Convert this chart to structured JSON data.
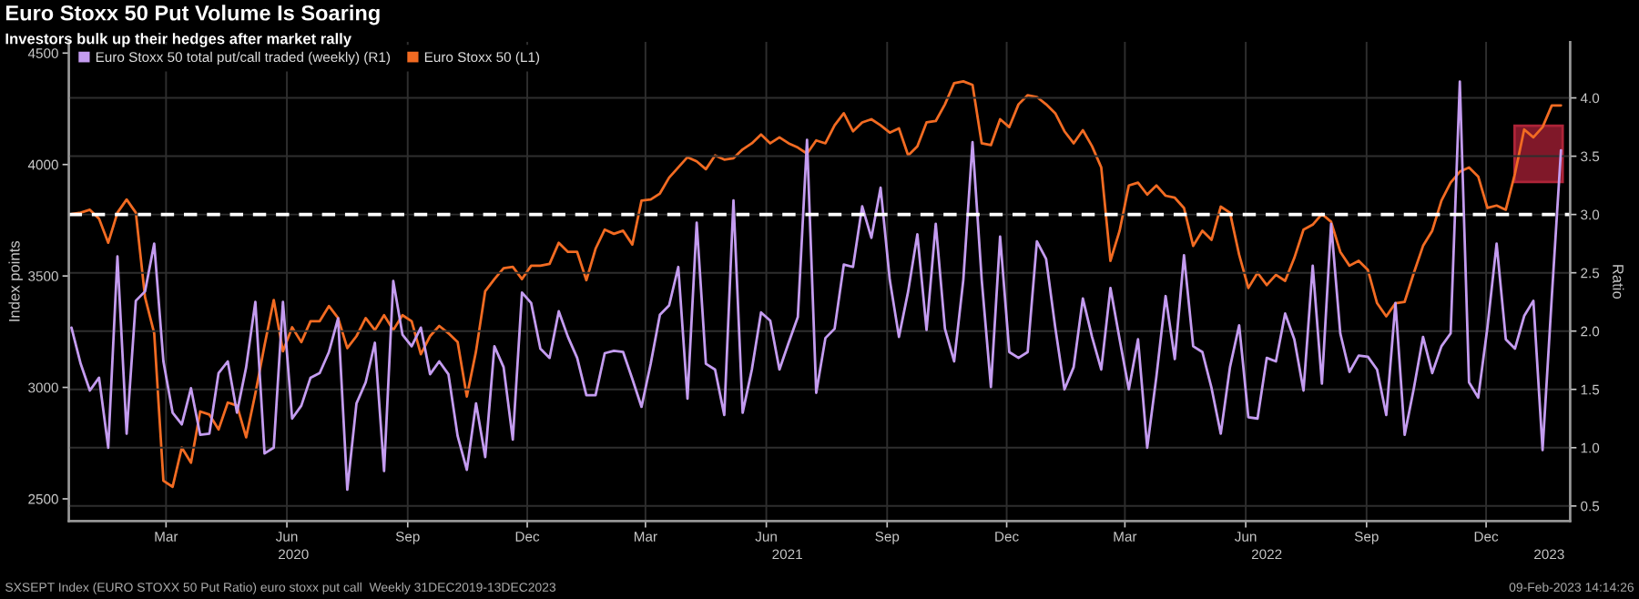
{
  "chart_data": {
    "type": "line",
    "title": "Euro Stoxx 50 Put Volume Is Soaring",
    "subtitle": "Investors bulk up their hedges after market rally",
    "ylabel": "Index points",
    "y2label": "Ratio",
    "annotations": [
      "SXSEPT Index (EURO STOXX 50 Put Ratio) euro stoxx put call  Weekly 31DEC2019-13DEC2023",
      "09-Feb-2023 14:14:26"
    ],
    "x": [
      "2020-01-03",
      "2020-01-10",
      "2020-01-17",
      "2020-01-24",
      "2020-01-31",
      "2020-02-07",
      "2020-02-14",
      "2020-02-21",
      "2020-02-28",
      "2020-03-06",
      "2020-03-13",
      "2020-03-20",
      "2020-03-27",
      "2020-04-03",
      "2020-04-10",
      "2020-04-17",
      "2020-04-24",
      "2020-05-01",
      "2020-05-08",
      "2020-05-15",
      "2020-05-22",
      "2020-05-29",
      "2020-06-05",
      "2020-06-12",
      "2020-06-19",
      "2020-06-26",
      "2020-07-03",
      "2020-07-10",
      "2020-07-17",
      "2020-07-24",
      "2020-07-31",
      "2020-08-07",
      "2020-08-14",
      "2020-08-21",
      "2020-08-28",
      "2020-09-04",
      "2020-09-11",
      "2020-09-18",
      "2020-09-25",
      "2020-10-02",
      "2020-10-09",
      "2020-10-16",
      "2020-10-23",
      "2020-10-30",
      "2020-11-06",
      "2020-11-13",
      "2020-11-20",
      "2020-11-27",
      "2020-12-04",
      "2020-12-11",
      "2020-12-18",
      "2020-12-25",
      "2021-01-01",
      "2021-01-08",
      "2021-01-15",
      "2021-01-22",
      "2021-01-29",
      "2021-02-05",
      "2021-02-12",
      "2021-02-19",
      "2021-02-26",
      "2021-03-05",
      "2021-03-12",
      "2021-03-19",
      "2021-03-26",
      "2021-04-02",
      "2021-04-09",
      "2021-04-16",
      "2021-04-23",
      "2021-04-30",
      "2021-05-07",
      "2021-05-14",
      "2021-05-21",
      "2021-05-28",
      "2021-06-04",
      "2021-06-11",
      "2021-06-18",
      "2021-06-25",
      "2021-07-02",
      "2021-07-09",
      "2021-07-16",
      "2021-07-23",
      "2021-07-30",
      "2021-08-06",
      "2021-08-13",
      "2021-08-20",
      "2021-08-27",
      "2021-09-03",
      "2021-09-10",
      "2021-09-17",
      "2021-09-24",
      "2021-10-01",
      "2021-10-08",
      "2021-10-15",
      "2021-10-22",
      "2021-10-29",
      "2021-11-05",
      "2021-11-12",
      "2021-11-19",
      "2021-11-26",
      "2021-12-03",
      "2021-12-10",
      "2021-12-17",
      "2021-12-24",
      "2021-12-31",
      "2022-01-07",
      "2022-01-14",
      "2022-01-21",
      "2022-01-28",
      "2022-02-04",
      "2022-02-11",
      "2022-02-18",
      "2022-02-25",
      "2022-03-04",
      "2022-03-11",
      "2022-03-18",
      "2022-03-25",
      "2022-04-01",
      "2022-04-08",
      "2022-04-15",
      "2022-04-22",
      "2022-04-29",
      "2022-05-06",
      "2022-05-13",
      "2022-05-20",
      "2022-05-27",
      "2022-06-03",
      "2022-06-10",
      "2022-06-17",
      "2022-06-24",
      "2022-07-01",
      "2022-07-08",
      "2022-07-15",
      "2022-07-22",
      "2022-07-29",
      "2022-08-05",
      "2022-08-12",
      "2022-08-19",
      "2022-08-26",
      "2022-09-02",
      "2022-09-09",
      "2022-09-16",
      "2022-09-23",
      "2022-09-30",
      "2022-10-07",
      "2022-10-14",
      "2022-10-21",
      "2022-10-28",
      "2022-11-04",
      "2022-11-11",
      "2022-11-18",
      "2022-11-25",
      "2022-12-02",
      "2022-12-09",
      "2022-12-16",
      "2022-12-23",
      "2022-12-30",
      "2023-01-06",
      "2023-01-13",
      "2023-01-20",
      "2023-01-27",
      "2023-02-03",
      "2023-02-10"
    ],
    "series": [
      {
        "name": "Euro Stoxx 50 (L1)",
        "color": "#f26b22",
        "values": [
          3778,
          3784,
          3797,
          3757,
          3649,
          3784,
          3843,
          3784,
          3405,
          3243,
          2581,
          2554,
          2730,
          2662,
          2892,
          2878,
          2811,
          2932,
          2919,
          2776,
          2973,
          3189,
          3392,
          3162,
          3270,
          3203,
          3297,
          3297,
          3365,
          3311,
          3176,
          3230,
          3311,
          3257,
          3324,
          3257,
          3324,
          3297,
          3149,
          3230,
          3276,
          3243,
          3203,
          2959,
          3162,
          3432,
          3486,
          3535,
          3541,
          3486,
          3546,
          3546,
          3554,
          3649,
          3608,
          3608,
          3481,
          3622,
          3708,
          3689,
          3703,
          3641,
          3838,
          3843,
          3870,
          3941,
          3987,
          4033,
          4014,
          3979,
          4041,
          4022,
          4028,
          4068,
          4095,
          4135,
          4095,
          4122,
          4095,
          4076,
          4049,
          4108,
          4095,
          4176,
          4230,
          4149,
          4189,
          4203,
          4176,
          4143,
          4162,
          4041,
          4082,
          4189,
          4195,
          4270,
          4365,
          4373,
          4357,
          4095,
          4087,
          4203,
          4168,
          4270,
          4311,
          4303,
          4270,
          4230,
          4149,
          4095,
          4154,
          4082,
          3987,
          3568,
          3703,
          3906,
          3919,
          3865,
          3906,
          3860,
          3851,
          3805,
          3635,
          3703,
          3662,
          3811,
          3784,
          3595,
          3446,
          3514,
          3459,
          3505,
          3478,
          3581,
          3708,
          3730,
          3778,
          3743,
          3608,
          3546,
          3568,
          3527,
          3378,
          3319,
          3378,
          3384,
          3514,
          3635,
          3703,
          3838,
          3919,
          3968,
          3987,
          3946,
          3805,
          3816,
          3797,
          3960,
          4157,
          4122,
          4168,
          4265,
          4265
        ]
      },
      {
        "name": "Euro Stoxx 50 total put/call traded (weekly) (R1)",
        "color": "#c49cf0",
        "axis": "y2",
        "values": [
          2.03,
          1.72,
          1.49,
          1.6,
          1.0,
          2.64,
          1.12,
          2.26,
          2.34,
          2.75,
          1.74,
          1.3,
          1.2,
          1.51,
          1.11,
          1.12,
          1.64,
          1.74,
          1.3,
          1.69,
          2.25,
          0.95,
          1.0,
          2.25,
          1.25,
          1.36,
          1.6,
          1.64,
          1.82,
          2.11,
          0.64,
          1.38,
          1.56,
          1.9,
          0.8,
          2.43,
          1.97,
          1.87,
          2.03,
          1.63,
          1.74,
          1.63,
          1.1,
          0.81,
          1.38,
          0.92,
          1.87,
          1.69,
          1.07,
          2.33,
          2.24,
          1.85,
          1.77,
          2.17,
          1.95,
          1.77,
          1.45,
          1.45,
          1.81,
          1.83,
          1.82,
          1.59,
          1.35,
          1.72,
          2.14,
          2.22,
          2.55,
          1.42,
          2.93,
          1.72,
          1.67,
          1.28,
          3.12,
          1.3,
          1.67,
          2.16,
          2.09,
          1.67,
          1.9,
          2.12,
          3.64,
          1.47,
          1.94,
          2.02,
          2.57,
          2.55,
          3.07,
          2.8,
          3.23,
          2.44,
          1.95,
          2.34,
          2.83,
          2.01,
          2.92,
          2.02,
          1.74,
          2.44,
          3.62,
          2.44,
          1.52,
          2.81,
          1.82,
          1.77,
          1.82,
          2.77,
          2.62,
          2.03,
          1.5,
          1.69,
          2.28,
          1.95,
          1.67,
          2.37,
          1.93,
          1.5,
          1.93,
          1.0,
          1.61,
          2.3,
          1.76,
          2.65,
          1.87,
          1.82,
          1.51,
          1.12,
          1.69,
          2.05,
          1.26,
          1.25,
          1.77,
          1.74,
          2.15,
          1.93,
          1.49,
          2.56,
          1.55,
          2.92,
          1.98,
          1.65,
          1.79,
          1.78,
          1.67,
          1.28,
          2.24,
          1.11,
          1.51,
          1.95,
          1.64,
          1.87,
          1.98,
          4.14,
          1.56,
          1.43,
          2.03,
          2.75,
          1.93,
          1.85,
          2.13,
          2.26,
          0.98,
          2.29,
          3.55
        ]
      }
    ],
    "xlim": [
      "2020-01-01",
      "2023-02-17"
    ],
    "xticks": [
      {
        "value": "2020-03-15",
        "label": "Mar"
      },
      {
        "value": "2020-06-15",
        "label": "Jun"
      },
      {
        "value": "2020-09-15",
        "label": "Sep"
      },
      {
        "value": "2020-12-15",
        "label": "Dec"
      },
      {
        "value": "2021-03-15",
        "label": "Mar"
      },
      {
        "value": "2021-06-15",
        "label": "Jun"
      },
      {
        "value": "2021-09-15",
        "label": "Sep"
      },
      {
        "value": "2021-12-15",
        "label": "Dec"
      },
      {
        "value": "2022-03-15",
        "label": "Mar"
      },
      {
        "value": "2022-06-15",
        "label": "Jun"
      },
      {
        "value": "2022-09-15",
        "label": "Sep"
      },
      {
        "value": "2022-12-15",
        "label": "Dec"
      }
    ],
    "x2lim": [
      "2020-01-01",
      "2023-02-17"
    ],
    "x2ticks": [
      {
        "value": "2020-06-20",
        "label": "2020"
      },
      {
        "value": "2021-07-01",
        "label": "2021"
      },
      {
        "value": "2022-07-01",
        "label": "2022"
      },
      {
        "value": "2023-02-01",
        "label": "2023"
      }
    ],
    "ylim": [
      2400,
      4550
    ],
    "yticks": [
      2500,
      3000,
      3500,
      4000,
      4500
    ],
    "y2lim": [
      0.37,
      4.48
    ],
    "y2ticks": [
      {
        "value": 0.5,
        "label": "0.5"
      },
      {
        "value": 1,
        "label": "1.0"
      },
      {
        "value": 1.5,
        "label": "1.5"
      },
      {
        "value": 2,
        "label": "2.0"
      },
      {
        "value": 2.5,
        "label": "2.5"
      },
      {
        "value": 3,
        "label": "3.0"
      },
      {
        "value": 3.5,
        "label": "3.5"
      },
      {
        "value": 4,
        "label": "4.0"
      }
    ],
    "ref_lines": [
      {
        "axis": "y2",
        "value": 3,
        "color": "#ffffff",
        "line_style": "dashed"
      }
    ],
    "grid": true,
    "legend": "top left"
  }
}
